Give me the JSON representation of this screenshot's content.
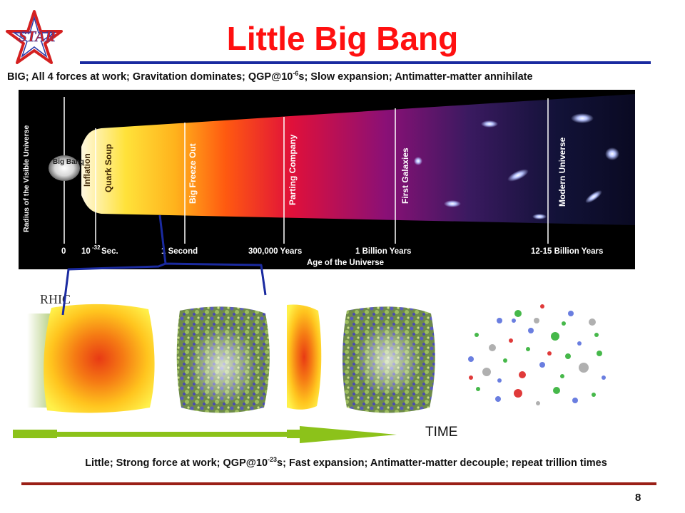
{
  "slide": {
    "title": "Little Big Bang",
    "page_number": "8",
    "logo_text": "STAR"
  },
  "big_line": {
    "pre": "BIG; All 4 forces at work; Gravitation dominates; QGP@10",
    "exp": "-6",
    "post": "s; Slow expansion; Antimatter-matter annihilate"
  },
  "little_line": {
    "pre": "Little; Strong force at work; QGP@10",
    "exp": "-23",
    "post": "s; Fast expansion; Antimatter-matter decouple; repeat trillion times"
  },
  "universe_diagram": {
    "y_axis_label": "Radius of the Visible Universe",
    "x_axis_label": "Age of the Universe",
    "eras": [
      "Big Bang",
      "Inflation",
      "Quark Soup",
      "Big Freeze Out",
      "Parting Company",
      "First Galaxies",
      "Modern Universe"
    ],
    "ticks": [
      "0",
      "10",
      "-32",
      " Sec.",
      "1 Second",
      "300,000 Years",
      "1 Billion Years",
      "12-15 Billion Years"
    ]
  },
  "collision": {
    "rhic_label": "RHIC",
    "time_label": "TIME"
  },
  "colors": {
    "title": "#ff1010",
    "top_rule": "#1a2aa0",
    "bottom_rule": "#9a1f16",
    "bracket": "#1a2aa0",
    "arrow": "#8cc21a"
  }
}
